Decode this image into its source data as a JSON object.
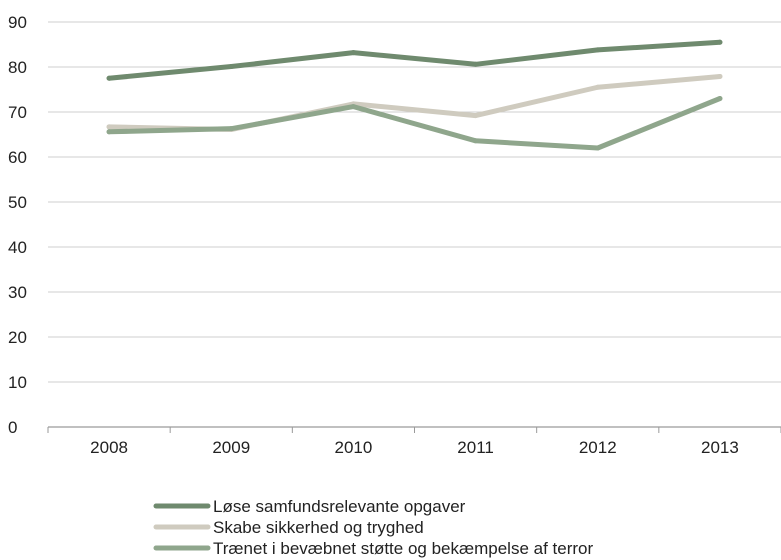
{
  "chart_data": {
    "type": "line",
    "title": "",
    "xlabel": "",
    "ylabel": "",
    "categories": [
      "2008",
      "2009",
      "2010",
      "2011",
      "2012",
      "2013"
    ],
    "ylim": [
      0,
      90
    ],
    "yticks": [
      0,
      10,
      20,
      30,
      40,
      50,
      60,
      70,
      80,
      90
    ],
    "grid": true,
    "legend_position": "bottom",
    "series": [
      {
        "name": "Løse samfundsrelevante opgaver",
        "color": "#6f8a6e",
        "values": [
          77.5,
          80.1,
          83.2,
          80.6,
          83.8,
          85.5
        ]
      },
      {
        "name": "Skabe sikkerhed og tryghed",
        "color": "#cfcbbf",
        "values": [
          66.7,
          66.1,
          71.8,
          69.2,
          75.5,
          77.9
        ]
      },
      {
        "name": "Trænet i bevæbnet støtte og bekæmpelse af terror",
        "color": "#8fa68c",
        "values": [
          65.6,
          66.3,
          71.2,
          63.6,
          62.0,
          73.0
        ]
      }
    ]
  }
}
